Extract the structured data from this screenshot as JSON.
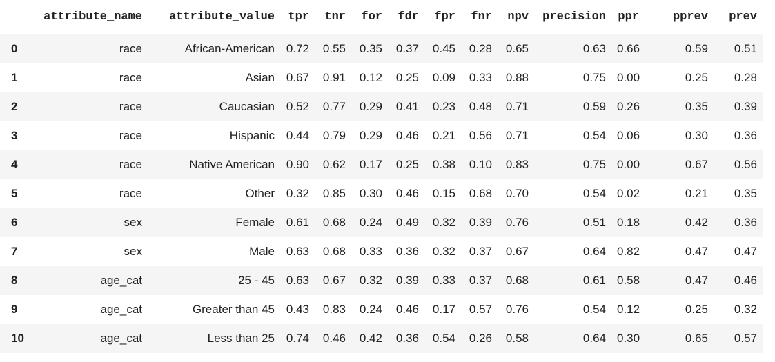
{
  "chart_data": {
    "type": "table",
    "title": "",
    "index_header": "",
    "columns": [
      "attribute_name",
      "attribute_value",
      "tpr",
      "tnr",
      "for",
      "fdr",
      "fpr",
      "fnr",
      "npv",
      "precision",
      "ppr",
      "pprev",
      "prev"
    ],
    "index": [
      "0",
      "1",
      "2",
      "3",
      "4",
      "5",
      "6",
      "7",
      "8",
      "9",
      "10"
    ],
    "rows": [
      [
        "race",
        "African-American",
        "0.72",
        "0.55",
        "0.35",
        "0.37",
        "0.45",
        "0.28",
        "0.65",
        "0.63",
        "0.66",
        "0.59",
        "0.51"
      ],
      [
        "race",
        "Asian",
        "0.67",
        "0.91",
        "0.12",
        "0.25",
        "0.09",
        "0.33",
        "0.88",
        "0.75",
        "0.00",
        "0.25",
        "0.28"
      ],
      [
        "race",
        "Caucasian",
        "0.52",
        "0.77",
        "0.29",
        "0.41",
        "0.23",
        "0.48",
        "0.71",
        "0.59",
        "0.26",
        "0.35",
        "0.39"
      ],
      [
        "race",
        "Hispanic",
        "0.44",
        "0.79",
        "0.29",
        "0.46",
        "0.21",
        "0.56",
        "0.71",
        "0.54",
        "0.06",
        "0.30",
        "0.36"
      ],
      [
        "race",
        "Native American",
        "0.90",
        "0.62",
        "0.17",
        "0.25",
        "0.38",
        "0.10",
        "0.83",
        "0.75",
        "0.00",
        "0.67",
        "0.56"
      ],
      [
        "race",
        "Other",
        "0.32",
        "0.85",
        "0.30",
        "0.46",
        "0.15",
        "0.68",
        "0.70",
        "0.54",
        "0.02",
        "0.21",
        "0.35"
      ],
      [
        "sex",
        "Female",
        "0.61",
        "0.68",
        "0.24",
        "0.49",
        "0.32",
        "0.39",
        "0.76",
        "0.51",
        "0.18",
        "0.42",
        "0.36"
      ],
      [
        "sex",
        "Male",
        "0.63",
        "0.68",
        "0.33",
        "0.36",
        "0.32",
        "0.37",
        "0.67",
        "0.64",
        "0.82",
        "0.47",
        "0.47"
      ],
      [
        "age_cat",
        "25 - 45",
        "0.63",
        "0.67",
        "0.32",
        "0.39",
        "0.33",
        "0.37",
        "0.68",
        "0.61",
        "0.58",
        "0.47",
        "0.46"
      ],
      [
        "age_cat",
        "Greater than 45",
        "0.43",
        "0.83",
        "0.24",
        "0.46",
        "0.17",
        "0.57",
        "0.76",
        "0.54",
        "0.12",
        "0.25",
        "0.32"
      ],
      [
        "age_cat",
        "Less than 25",
        "0.74",
        "0.46",
        "0.42",
        "0.36",
        "0.54",
        "0.26",
        "0.58",
        "0.64",
        "0.30",
        "0.65",
        "0.57"
      ]
    ],
    "layout": {
      "striped_row_color": "#f5f5f5",
      "header_border_color": "#b5b5b5",
      "text_color": "#212121",
      "background_color": "#ffffff",
      "stripe_pattern": "even data rows (0,2,4,...) shaded",
      "value_alignment": "right",
      "index_alignment": "left"
    }
  }
}
